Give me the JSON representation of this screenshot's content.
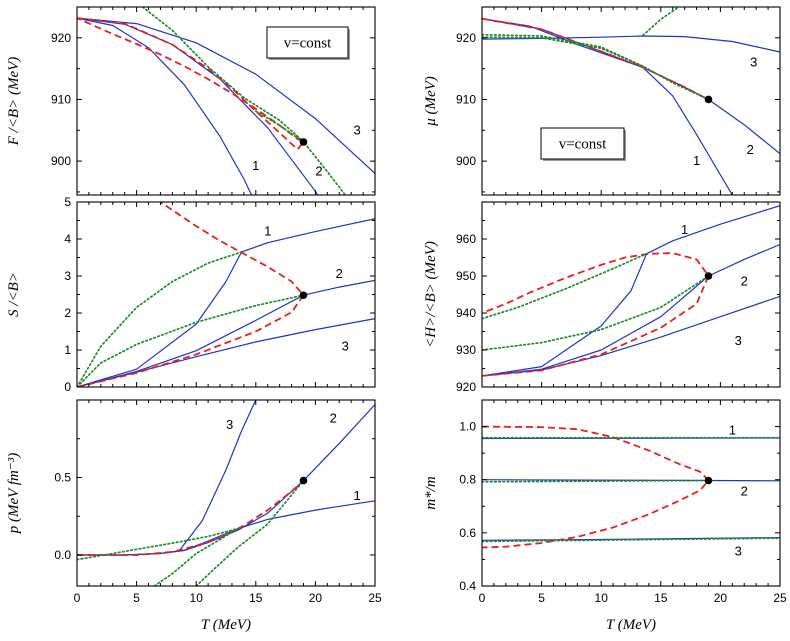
{
  "figure": {
    "x_axis_label": "T (MeV)",
    "colors": {
      "solid": "#1f35c8",
      "dashed": "#e8201a",
      "dotted": "#1e8a2a",
      "point": "#000000"
    }
  },
  "chart_data": [
    {
      "id": "F",
      "type": "line",
      "ylabel": "F /<B> (MeV)",
      "xlim": [
        0,
        25
      ],
      "ylim": [
        894.5,
        925
      ],
      "xticks": [
        0,
        5,
        10,
        15,
        20,
        25
      ],
      "xticklabels": [
        "",
        "",
        "",
        "",
        "",
        ""
      ],
      "yticks": [
        900,
        910,
        920
      ],
      "yticklabels": [
        "900",
        "910",
        "920"
      ],
      "annotation_box": "v=const",
      "curve_labels": [
        {
          "text": "1",
          "x": 15,
          "y": 899.2
        },
        {
          "text": "2",
          "x": 20.3,
          "y": 898.3
        },
        {
          "text": "3",
          "x": 23.5,
          "y": 905
        }
      ],
      "series": [
        {
          "style": "solid",
          "x": [
            0,
            5,
            10,
            15,
            20,
            25
          ],
          "y": [
            923.2,
            922.3,
            919.2,
            914.1,
            906.9,
            898
          ]
        },
        {
          "style": "solid",
          "x": [
            0,
            4,
            8,
            12,
            16,
            20,
            22
          ],
          "y": [
            923.2,
            922.2,
            918.9,
            913.3,
            905.4,
            895.1,
            889
          ]
        },
        {
          "style": "solid",
          "x": [
            0,
            3,
            6,
            9,
            12,
            14,
            16
          ],
          "y": [
            923.2,
            922,
            918.4,
            912.4,
            904,
            897.1,
            889
          ]
        },
        {
          "style": "dashed",
          "x": [
            0,
            4,
            8,
            11,
            13,
            15,
            17,
            18.5,
            19,
            18.5,
            17,
            15,
            13,
            11,
            9,
            7,
            5,
            3,
            1.5,
            0
          ],
          "y": [
            923.2,
            922.3,
            918.9,
            915,
            911.8,
            908.1,
            904.6,
            901.9,
            903.1,
            903.6,
            905.8,
            908.5,
            911,
            913.3,
            915.4,
            917.3,
            919,
            920.6,
            921.9,
            923.2
          ]
        },
        {
          "style": "dotted",
          "x": [
            5.5,
            8,
            11,
            14,
            17,
            19
          ],
          "y": [
            925,
            921.2,
            915.3,
            910.3,
            906.6,
            903.2
          ]
        },
        {
          "style": "dotted",
          "x": [
            15,
            17,
            19,
            21,
            22.5
          ],
          "y": [
            908.1,
            905.8,
            903.1,
            898.3,
            894.5
          ]
        }
      ],
      "point": {
        "x": 19,
        "y": 903.1
      }
    },
    {
      "id": "mu",
      "type": "line",
      "ylabel": "μ (MeV)",
      "xlim": [
        0,
        25
      ],
      "ylim": [
        894.5,
        925
      ],
      "xticks": [
        0,
        5,
        10,
        15,
        20,
        25
      ],
      "xticklabels": [
        "",
        "",
        "",
        "",
        "",
        ""
      ],
      "yticks": [
        900,
        910,
        920
      ],
      "yticklabels": [
        "900",
        "910",
        "920"
      ],
      "annotation_box": "v=const",
      "curve_labels": [
        {
          "text": "1",
          "x": 18,
          "y": 900
        },
        {
          "text": "2",
          "x": 22.5,
          "y": 901.8
        },
        {
          "text": "3",
          "x": 22.8,
          "y": 916
        }
      ],
      "series": [
        {
          "style": "solid",
          "x": [
            0,
            5,
            10,
            13.5,
            17,
            19,
            22,
            25
          ],
          "y": [
            923.1,
            921.4,
            917.8,
            915.2,
            912,
            910,
            905.9,
            901.2
          ]
        },
        {
          "style": "solid",
          "x": [
            0,
            4,
            8,
            13.5,
            16,
            18,
            21
          ],
          "y": [
            923.1,
            921.9,
            918.9,
            915.2,
            910.6,
            904.3,
            894.5
          ]
        },
        {
          "style": "solid",
          "x": [
            0,
            5,
            10,
            13.5,
            17,
            21,
            25
          ],
          "y": [
            919.8,
            919.9,
            920.1,
            920.3,
            920.2,
            919.4,
            917.7
          ]
        },
        {
          "style": "dashed",
          "x": [
            0,
            5,
            10,
            13.5,
            17,
            19
          ],
          "y": [
            923.1,
            921.4,
            917.8,
            915.2,
            912,
            910
          ]
        },
        {
          "style": "dotted",
          "x": [
            0,
            5,
            10,
            13.5,
            16,
            19
          ],
          "y": [
            920.5,
            920.3,
            918.5,
            915.4,
            912.7,
            910
          ]
        },
        {
          "style": "dotted",
          "x": [
            0,
            5,
            10,
            13.5
          ],
          "y": [
            920.1,
            920,
            918.3,
            915.4
          ]
        },
        {
          "style": "dotted",
          "x": [
            13.5,
            15,
            16.5
          ],
          "y": [
            920.4,
            923,
            925
          ]
        }
      ],
      "point": {
        "x": 19,
        "y": 910
      }
    },
    {
      "id": "S",
      "type": "line",
      "ylabel": "S /<B>",
      "xlim": [
        0,
        25
      ],
      "ylim": [
        0,
        5
      ],
      "xticks": [
        0,
        5,
        10,
        15,
        20,
        25
      ],
      "xticklabels": [
        "",
        "",
        "",
        "",
        "",
        ""
      ],
      "yticks": [
        0,
        1,
        2,
        3,
        4,
        5
      ],
      "yticklabels": [
        "0",
        "1",
        "2",
        "3",
        "4",
        "5"
      ],
      "curve_labels": [
        {
          "text": "1",
          "x": 16,
          "y": 4.2
        },
        {
          "text": "2",
          "x": 22,
          "y": 3.05
        },
        {
          "text": "3",
          "x": 22.5,
          "y": 1.1
        }
      ],
      "series": [
        {
          "style": "solid",
          "x": [
            0,
            5,
            10,
            15,
            20,
            25
          ],
          "y": [
            0,
            0.4,
            0.82,
            1.22,
            1.55,
            1.85
          ]
        },
        {
          "style": "solid",
          "x": [
            0,
            5,
            10,
            15,
            19,
            22,
            25
          ],
          "y": [
            0,
            0.42,
            0.98,
            1.8,
            2.48,
            2.7,
            2.88
          ]
        },
        {
          "style": "solid",
          "x": [
            0,
            5,
            10,
            12.5,
            13.8,
            16,
            20,
            25
          ],
          "y": [
            0,
            0.48,
            1.7,
            2.85,
            3.65,
            3.9,
            4.2,
            4.55
          ]
        },
        {
          "style": "dashed",
          "x": [
            0,
            5,
            10,
            15,
            18,
            19,
            18,
            16,
            14,
            12,
            10,
            8,
            7
          ],
          "y": [
            0,
            0.38,
            0.88,
            1.5,
            2.02,
            2.48,
            2.85,
            3.25,
            3.6,
            3.95,
            4.35,
            4.78,
            5
          ]
        },
        {
          "style": "dotted",
          "x": [
            0,
            2,
            5,
            8,
            11,
            13.8
          ],
          "y": [
            0,
            1.1,
            2.15,
            2.85,
            3.35,
            3.65
          ]
        },
        {
          "style": "dotted",
          "x": [
            0,
            2,
            5,
            10,
            15,
            19
          ],
          "y": [
            0,
            0.65,
            1.15,
            1.75,
            2.2,
            2.48
          ]
        }
      ],
      "point": {
        "x": 19,
        "y": 2.48
      }
    },
    {
      "id": "H",
      "type": "line",
      "ylabel": "<H>/<B> (MeV)",
      "xlim": [
        0,
        25
      ],
      "ylim": [
        920,
        970
      ],
      "xticks": [
        0,
        5,
        10,
        15,
        20,
        25
      ],
      "xticklabels": [
        "",
        "",
        "",
        "",
        "",
        ""
      ],
      "yticks": [
        920,
        930,
        940,
        950,
        960
      ],
      "yticklabels": [
        "920",
        "930",
        "940",
        "950",
        "960"
      ],
      "curve_labels": [
        {
          "text": "1",
          "x": 17,
          "y": 962.5
        },
        {
          "text": "2",
          "x": 22,
          "y": 948.5
        },
        {
          "text": "3",
          "x": 21.5,
          "y": 932.5
        }
      ],
      "series": [
        {
          "style": "solid",
          "x": [
            0,
            5,
            10,
            15,
            20,
            25
          ],
          "y": [
            923,
            924.6,
            928.5,
            933.5,
            939,
            944.5
          ]
        },
        {
          "style": "solid",
          "x": [
            0,
            5,
            10,
            15,
            19,
            22,
            25
          ],
          "y": [
            923,
            924.8,
            930,
            939,
            950,
            954.5,
            958.5
          ]
        },
        {
          "style": "solid",
          "x": [
            0,
            5,
            10,
            12.5,
            13.8,
            16,
            20,
            25
          ],
          "y": [
            923,
            925.5,
            936.5,
            946,
            956,
            959.5,
            964,
            969
          ]
        },
        {
          "style": "dashed",
          "x": [
            0,
            5,
            10,
            15,
            18,
            19,
            18,
            16,
            14,
            12,
            10,
            7,
            4,
            2,
            0
          ],
          "y": [
            923,
            924.5,
            928.8,
            936,
            942.5,
            950,
            954.5,
            956.2,
            956,
            955,
            953,
            949.5,
            945.5,
            942.5,
            940
          ]
        },
        {
          "style": "dotted",
          "x": [
            0,
            3,
            7,
            11,
            13.8
          ],
          "y": [
            938.5,
            941.5,
            946.5,
            952,
            956
          ]
        },
        {
          "style": "dotted",
          "x": [
            0,
            5,
            10,
            15,
            19
          ],
          "y": [
            930,
            932,
            935.5,
            941.5,
            950
          ]
        }
      ],
      "point": {
        "x": 19,
        "y": 950
      }
    },
    {
      "id": "p",
      "type": "line",
      "ylabel": "p (MeV fm⁻³)",
      "xlim": [
        0,
        25
      ],
      "ylim": [
        -0.2,
        1.0
      ],
      "xticks": [
        0,
        5,
        10,
        15,
        20,
        25
      ],
      "xticklabels": [
        "0",
        "5",
        "10",
        "15",
        "20",
        "25"
      ],
      "yticks": [
        0,
        0.5
      ],
      "yticklabels": [
        "0.0",
        "0.5"
      ],
      "curve_labels": [
        {
          "text": "1",
          "x": 23.5,
          "y": 0.38
        },
        {
          "text": "2",
          "x": 21.5,
          "y": 0.88
        },
        {
          "text": "3",
          "x": 12.8,
          "y": 0.84
        }
      ],
      "series": [
        {
          "style": "solid",
          "x": [
            0,
            4,
            7,
            9,
            11,
            13.5,
            16,
            20,
            25
          ],
          "y": [
            0,
            0,
            0.01,
            0.03,
            0.09,
            0.17,
            0.23,
            0.29,
            0.35
          ]
        },
        {
          "style": "solid",
          "x": [
            0,
            4,
            7,
            9,
            11,
            13.5,
            16,
            19,
            22,
            25
          ],
          "y": [
            0,
            0,
            0.01,
            0.03,
            0.08,
            0.16,
            0.27,
            0.48,
            0.72,
            0.97
          ]
        },
        {
          "style": "solid",
          "x": [
            8.6,
            10.5,
            12.5,
            13.8,
            15
          ],
          "y": [
            0.03,
            0.22,
            0.55,
            0.8,
            1.0
          ]
        },
        {
          "style": "dashed",
          "x": [
            0,
            5,
            8,
            10,
            12,
            14,
            16,
            18,
            19
          ],
          "y": [
            0,
            0,
            0.02,
            0.06,
            0.11,
            0.19,
            0.29,
            0.41,
            0.48
          ]
        },
        {
          "style": "dotted",
          "x": [
            0,
            3,
            6,
            9,
            11,
            13.5
          ],
          "y": [
            -0.03,
            0.01,
            0.05,
            0.09,
            0.12,
            0.17
          ]
        },
        {
          "style": "dotted",
          "x": [
            6.5,
            8,
            10,
            12,
            13.5
          ],
          "y": [
            -0.2,
            -0.12,
            0.01,
            0.1,
            0.17
          ]
        },
        {
          "style": "dotted",
          "x": [
            10,
            11.5,
            13.5,
            16,
            19
          ],
          "y": [
            -0.2,
            -0.09,
            0.05,
            0.2,
            0.48
          ]
        }
      ],
      "point": {
        "x": 19,
        "y": 0.48
      }
    },
    {
      "id": "m",
      "type": "line",
      "ylabel": "m*/m",
      "xlim": [
        0,
        25
      ],
      "ylim": [
        0.4,
        1.1
      ],
      "xticks": [
        0,
        5,
        10,
        15,
        20,
        25
      ],
      "xticklabels": [
        "0",
        "5",
        "10",
        "15",
        "20",
        "25"
      ],
      "yticks": [
        0.4,
        0.6,
        0.8,
        1.0
      ],
      "yticklabels": [
        "0.4",
        "0.6",
        "0.8",
        "1.0"
      ],
      "curve_labels": [
        {
          "text": "1",
          "x": 21,
          "y": 0.985
        },
        {
          "text": "2",
          "x": 22,
          "y": 0.755
        },
        {
          "text": "3",
          "x": 21.5,
          "y": 0.53
        }
      ],
      "series": [
        {
          "style": "solid",
          "x": [
            0,
            25
          ],
          "y": [
            0.955,
            0.957
          ]
        },
        {
          "style": "solid",
          "x": [
            0,
            19,
            25
          ],
          "y": [
            0.8,
            0.797,
            0.796
          ]
        },
        {
          "style": "solid",
          "x": [
            0,
            10,
            25
          ],
          "y": [
            0.572,
            0.575,
            0.582
          ]
        },
        {
          "style": "dashed",
          "x": [
            0,
            5,
            8,
            11,
            14,
            16.5,
            18.3,
            19,
            18.3,
            16.5,
            14,
            11,
            8,
            5,
            2,
            0
          ],
          "y": [
            1.0,
            0.998,
            0.99,
            0.96,
            0.91,
            0.86,
            0.83,
            0.797,
            0.76,
            0.72,
            0.67,
            0.62,
            0.585,
            0.562,
            0.548,
            0.545
          ]
        },
        {
          "style": "dotted",
          "x": [
            0,
            25
          ],
          "y": [
            0.958,
            0.958
          ]
        },
        {
          "style": "dotted",
          "x": [
            0,
            19
          ],
          "y": [
            0.792,
            0.797
          ]
        },
        {
          "style": "dotted",
          "x": [
            0,
            25
          ],
          "y": [
            0.568,
            0.58
          ]
        }
      ],
      "point": {
        "x": 19,
        "y": 0.797
      }
    }
  ]
}
